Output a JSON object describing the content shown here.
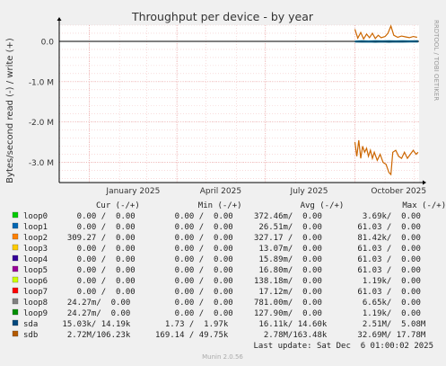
{
  "title": "Throughput per device - by year",
  "ylabel": "Bytes/second read (-) / write (+)",
  "side_text": "RRDTOOL / TOBI OETIKER",
  "footer": "Munin 2.0.56",
  "last_update": "Last update: Sat Dec  6 01:00:02 2025",
  "chart_data": {
    "type": "line",
    "title": "Throughput per device - by year",
    "ylabel": "Bytes/second read (-) / write (+)",
    "x_ticks": [
      "January 2025",
      "April 2025",
      "July 2025",
      "October 2025"
    ],
    "y_ticks": [
      "0.0",
      "-1.0 M",
      "-2.0 M",
      "-3.0 M"
    ],
    "y_tick_values": [
      0,
      -1000000,
      -2000000,
      -3000000
    ],
    "ylim": [
      -3500000,
      400000
    ],
    "x_range": [
      "2024-12-01",
      "2025-12-06"
    ],
    "grid": true,
    "series": [
      {
        "name": "sdb",
        "color": "#CC6600",
        "write_values": [
          {
            "x": "2025-10-01",
            "y": 300000
          },
          {
            "x": "2025-10-04",
            "y": 80000
          },
          {
            "x": "2025-10-07",
            "y": 220000
          },
          {
            "x": "2025-10-10",
            "y": 60000
          },
          {
            "x": "2025-10-13",
            "y": 180000
          },
          {
            "x": "2025-10-16",
            "y": 90000
          },
          {
            "x": "2025-10-19",
            "y": 200000
          },
          {
            "x": "2025-10-22",
            "y": 70000
          },
          {
            "x": "2025-10-25",
            "y": 150000
          },
          {
            "x": "2025-10-28",
            "y": 90000
          },
          {
            "x": "2025-11-01",
            "y": 120000
          },
          {
            "x": "2025-11-04",
            "y": 200000
          },
          {
            "x": "2025-11-07",
            "y": 380000
          },
          {
            "x": "2025-11-10",
            "y": 150000
          },
          {
            "x": "2025-11-14",
            "y": 100000
          },
          {
            "x": "2025-11-18",
            "y": 130000
          },
          {
            "x": "2025-11-22",
            "y": 110000
          },
          {
            "x": "2025-11-26",
            "y": 90000
          },
          {
            "x": "2025-11-30",
            "y": 120000
          },
          {
            "x": "2025-12-04",
            "y": 100000
          }
        ],
        "read_values": [
          {
            "x": "2025-10-01",
            "y": -2500000
          },
          {
            "x": "2025-10-03",
            "y": -2850000
          },
          {
            "x": "2025-10-05",
            "y": -2450000
          },
          {
            "x": "2025-10-07",
            "y": -2900000
          },
          {
            "x": "2025-10-09",
            "y": -2600000
          },
          {
            "x": "2025-10-11",
            "y": -2750000
          },
          {
            "x": "2025-10-13",
            "y": -2650000
          },
          {
            "x": "2025-10-15",
            "y": -2850000
          },
          {
            "x": "2025-10-17",
            "y": -2700000
          },
          {
            "x": "2025-10-19",
            "y": -2900000
          },
          {
            "x": "2025-10-21",
            "y": -2750000
          },
          {
            "x": "2025-10-24",
            "y": -2950000
          },
          {
            "x": "2025-10-27",
            "y": -2800000
          },
          {
            "x": "2025-10-30",
            "y": -3000000
          },
          {
            "x": "2025-11-02",
            "y": -3050000
          },
          {
            "x": "2025-11-05",
            "y": -3250000
          },
          {
            "x": "2025-11-07",
            "y": -3300000
          },
          {
            "x": "2025-11-09",
            "y": -2750000
          },
          {
            "x": "2025-11-12",
            "y": -2700000
          },
          {
            "x": "2025-11-15",
            "y": -2850000
          },
          {
            "x": "2025-11-18",
            "y": -2900000
          },
          {
            "x": "2025-11-21",
            "y": -2750000
          },
          {
            "x": "2025-11-24",
            "y": -2900000
          },
          {
            "x": "2025-11-27",
            "y": -2800000
          },
          {
            "x": "2025-11-30",
            "y": -2700000
          },
          {
            "x": "2025-12-03",
            "y": -2800000
          },
          {
            "x": "2025-12-05",
            "y": -2750000
          }
        ]
      },
      {
        "name": "sda",
        "color": "#005A80",
        "write_values": [
          {
            "x": "2025-10-01",
            "y": 5000
          },
          {
            "x": "2025-10-08",
            "y": 12000
          },
          {
            "x": "2025-10-15",
            "y": 8000
          },
          {
            "x": "2025-10-22",
            "y": 15000
          },
          {
            "x": "2025-10-29",
            "y": 9000
          },
          {
            "x": "2025-11-05",
            "y": 14000
          },
          {
            "x": "2025-11-12",
            "y": 10000
          },
          {
            "x": "2025-11-19",
            "y": 13000
          },
          {
            "x": "2025-11-26",
            "y": 11000
          },
          {
            "x": "2025-12-05",
            "y": 14000
          }
        ],
        "read_values": [
          {
            "x": "2025-10-01",
            "y": -15000
          },
          {
            "x": "2025-10-08",
            "y": -20000
          },
          {
            "x": "2025-10-15",
            "y": -14000
          },
          {
            "x": "2025-10-22",
            "y": -22000
          },
          {
            "x": "2025-10-29",
            "y": -16000
          },
          {
            "x": "2025-11-05",
            "y": -21000
          },
          {
            "x": "2025-11-12",
            "y": -17000
          },
          {
            "x": "2025-11-19",
            "y": -19000
          },
          {
            "x": "2025-11-26",
            "y": -15000
          },
          {
            "x": "2025-12-05",
            "y": -16000
          }
        ]
      }
    ]
  },
  "legend_header": "Cur (-/+)            Min (-/+)            Avg (-/+)            Max (-/+)",
  "legend": [
    {
      "name": "loop0",
      "color": "#00CC00",
      "cur": "    0.00 /  0.00",
      "min": "    0.00 /  0.00",
      "avg": "372.46m/  0.00",
      "max": "  3.69k/  0.00"
    },
    {
      "name": "loop1",
      "color": "#0066B3",
      "cur": "    0.00 /  0.00",
      "min": "    0.00 /  0.00",
      "avg": " 26.51m/  0.00",
      "max": " 61.03 /  0.00"
    },
    {
      "name": "loop2",
      "color": "#FF8000",
      "cur": "  309.27 /  0.00",
      "min": "    0.00 /  0.00",
      "avg": "327.17 /  0.00",
      "max": " 81.42k/  0.00"
    },
    {
      "name": "loop3",
      "color": "#FFCC00",
      "cur": "    0.00 /  0.00",
      "min": "    0.00 /  0.00",
      "avg": " 13.07m/  0.00",
      "max": " 61.03 /  0.00"
    },
    {
      "name": "loop4",
      "color": "#330099",
      "cur": "    0.00 /  0.00",
      "min": "    0.00 /  0.00",
      "avg": " 15.89m/  0.00",
      "max": " 61.03 /  0.00"
    },
    {
      "name": "loop5",
      "color": "#990099",
      "cur": "    0.00 /  0.00",
      "min": "    0.00 /  0.00",
      "avg": " 16.80m/  0.00",
      "max": " 61.03 /  0.00"
    },
    {
      "name": "loop6",
      "color": "#CCFF00",
      "cur": "    0.00 /  0.00",
      "min": "    0.00 /  0.00",
      "avg": "138.18m/  0.00",
      "max": "  1.19k/  0.00"
    },
    {
      "name": "loop7",
      "color": "#FF0000",
      "cur": "    0.00 /  0.00",
      "min": "    0.00 /  0.00",
      "avg": " 17.12m/  0.00",
      "max": " 61.03 /  0.00"
    },
    {
      "name": "loop8",
      "color": "#808080",
      "cur": "  24.27m/  0.00",
      "min": "    0.00 /  0.00",
      "avg": "781.00m/  0.00",
      "max": "  6.65k/  0.00"
    },
    {
      "name": "loop9",
      "color": "#008F00",
      "cur": "  24.27m/  0.00",
      "min": "    0.00 /  0.00",
      "avg": "127.90m/  0.00",
      "max": "  1.19k/  0.00"
    },
    {
      "name": "sda",
      "color": "#00487D",
      "cur": " 15.03k/ 14.19k",
      "min": "  1.73 /  1.97k",
      "avg": " 16.11k/ 14.60k",
      "max": "  2.51M/  5.08M"
    },
    {
      "name": "sdb",
      "color": "#B35A00",
      "cur": "  2.72M/106.23k",
      "min": "169.14 / 49.75k",
      "avg": "  2.78M/163.48k",
      "max": " 32.69M/ 17.78M"
    }
  ]
}
